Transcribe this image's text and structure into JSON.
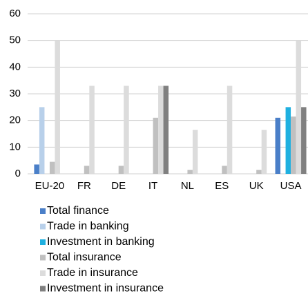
{
  "chart_data": {
    "type": "bar",
    "categories": [
      "EU-20",
      "FR",
      "DE",
      "IT",
      "NL",
      "ES",
      "UK",
      "USA"
    ],
    "series": [
      {
        "name": "Total finance",
        "color": "#4a7fc8",
        "values": [
          3.5,
          0,
          0,
          0,
          0,
          0,
          0,
          21
        ]
      },
      {
        "name": "Trade in banking",
        "color": "#b8d0ea",
        "values": [
          25,
          0,
          0,
          0,
          0,
          0,
          0,
          0
        ]
      },
      {
        "name": "Investment in banking",
        "color": "#1fb0e0",
        "values": [
          0,
          0,
          0,
          0,
          0,
          0,
          0,
          25
        ]
      },
      {
        "name": "Total insurance",
        "color": "#c0c0c0",
        "values": [
          4.5,
          3,
          3,
          21,
          1.5,
          3,
          1.5,
          21.5
        ]
      },
      {
        "name": "Trade in insurance",
        "color": "#dcdcdc",
        "values": [
          50,
          33,
          33,
          33,
          16.5,
          33,
          16.5,
          50
        ]
      },
      {
        "name": "Investment in insurance",
        "color": "#808080",
        "values": [
          0,
          0,
          0,
          33,
          0,
          0,
          0,
          25
        ]
      }
    ],
    "ylim": [
      0,
      60
    ],
    "yticks": [
      0,
      10,
      20,
      30,
      40,
      50,
      60
    ],
    "grid": true,
    "legend": "bottom"
  }
}
